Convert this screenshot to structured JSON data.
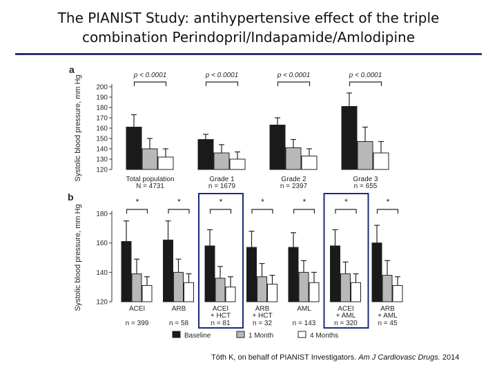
{
  "slide": {
    "title_line1": "The PIANIST Study: antihypertensive effect of the triple",
    "title_line2": "combination Perindopril/Indapamide/Amlodipine",
    "citation_authors": "Tòth K, on behalf of PIANIST Investigators.",
    "citation_journal": "Am J Cardiovasc Drugs.",
    "citation_year": "2014"
  },
  "colors": {
    "baseline": "#1a1a1a",
    "month1": "#b8b8b8",
    "month4": "#ffffff",
    "highlight_box": "#1c2a78",
    "title_rule": "#2b2f73"
  },
  "chart_data": [
    {
      "type": "bar",
      "panel_label": "a",
      "ylabel": "Systolic blood pressure, mm Hg",
      "ylim": [
        120,
        200
      ],
      "yticks": [
        120,
        130,
        140,
        150,
        160,
        170,
        180,
        190,
        200
      ],
      "categories": [
        "Total population",
        "Grade 1",
        "Grade 2",
        "Grade 3"
      ],
      "sublabels": [
        "N = 4731",
        "n = 1679",
        "n = 2397",
        "n = 655"
      ],
      "series": [
        {
          "name": "Baseline",
          "values": [
            161,
            149,
            163,
            181
          ],
          "errors": [
            12,
            5,
            7,
            13
          ]
        },
        {
          "name": "1 Month",
          "values": [
            140,
            136,
            141,
            147
          ],
          "errors": [
            10,
            8,
            8,
            14
          ]
        },
        {
          "name": "4 Months",
          "values": [
            132,
            130,
            133,
            136
          ],
          "errors": [
            8,
            7,
            7,
            11
          ]
        }
      ],
      "annotations": [
        "p < 0.0001",
        "p < 0.0001",
        "p < 0.0001",
        "p < 0.0001"
      ]
    },
    {
      "type": "bar",
      "panel_label": "b",
      "ylabel": "Systolic blood pressure, mm Hg",
      "ylim": [
        120,
        180
      ],
      "yticks": [
        120,
        140,
        160,
        180
      ],
      "categories": [
        [
          "ACEI"
        ],
        [
          "ARB"
        ],
        [
          "ACEI",
          "+ HCT"
        ],
        [
          "ARB",
          "+ HCT"
        ],
        [
          "AML"
        ],
        [
          "ACEI",
          "+ AML"
        ],
        [
          "ARB",
          "+ AML"
        ]
      ],
      "sublabels": [
        "n = 399",
        "n = 58",
        "n = 81",
        "n = 32",
        "n = 143",
        "n = 320",
        "n = 45"
      ],
      "series": [
        {
          "name": "Baseline",
          "values": [
            161,
            162,
            158,
            157,
            157,
            158,
            160
          ],
          "errors": [
            14,
            13,
            11,
            11,
            10,
            11,
            12
          ]
        },
        {
          "name": "1 Month",
          "values": [
            139,
            140,
            136,
            137,
            140,
            139,
            138
          ],
          "errors": [
            10,
            9,
            8,
            9,
            8,
            8,
            10
          ]
        },
        {
          "name": "4 Months",
          "values": [
            131,
            133,
            130,
            132,
            133,
            133,
            131
          ],
          "errors": [
            6,
            6,
            7,
            6,
            7,
            6,
            6
          ]
        }
      ],
      "annotations": [
        "*",
        "*",
        "*",
        "*",
        "*",
        "*",
        "*"
      ],
      "highlighted_groups": [
        2,
        5
      ],
      "legend": [
        "Baseline",
        "1 Month",
        "4 Months"
      ],
      "legend_position": "bottom"
    }
  ]
}
